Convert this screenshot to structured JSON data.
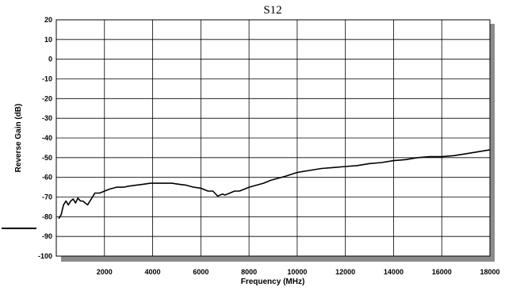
{
  "chart_data": {
    "type": "line",
    "title": "S12",
    "xlabel": "Frequency (MHz)",
    "ylabel": "Reverse Gain (dB)",
    "xlim": [
      0,
      18000
    ],
    "ylim": [
      -100,
      20
    ],
    "xticks": [
      2000,
      4000,
      6000,
      8000,
      10000,
      12000,
      14000,
      16000,
      18000
    ],
    "xtick_labels": [
      "2000",
      "4000",
      "6000",
      "8000",
      "10000",
      "12000",
      "14000",
      "16000",
      "18000"
    ],
    "yticks": [
      20,
      10,
      0,
      -10,
      -20,
      -30,
      -40,
      -50,
      -60,
      -70,
      -80,
      -90,
      -100
    ],
    "ytick_labels": [
      "20",
      "10",
      "0",
      "-10",
      "-20",
      "-30",
      "-40",
      "-50",
      "-60",
      "-70",
      "-80",
      "-90",
      "-100"
    ],
    "grid": true,
    "series": [
      {
        "color": "#000000",
        "x": [
          100,
          200,
          300,
          400,
          500,
          600,
          700,
          800,
          900,
          1000,
          1100,
          1200,
          1300,
          1400,
          1500,
          1600,
          1700,
          1800,
          2000,
          2200,
          2500,
          2800,
          3000,
          3300,
          3600,
          3900,
          4200,
          4500,
          4800,
          5100,
          5400,
          5700,
          6000,
          6300,
          6500,
          6700,
          6800,
          6900,
          7000,
          7200,
          7400,
          7600,
          7800,
          8000,
          8300,
          8600,
          8900,
          9200,
          9500,
          10000,
          10500,
          11000,
          11500,
          12000,
          12500,
          13000,
          13500,
          14000,
          14500,
          15000,
          15500,
          16000,
          16500,
          17000,
          17500,
          18000
        ],
        "y": [
          -81,
          -79,
          -74,
          -72,
          -74,
          -72,
          -71,
          -73,
          -70.5,
          -72,
          -72,
          -73,
          -74,
          -72,
          -70,
          -68,
          -68,
          -68,
          -67,
          -66,
          -65,
          -65,
          -64.5,
          -64,
          -63.5,
          -63,
          -63,
          -63,
          -63,
          -63.5,
          -64,
          -65,
          -65.5,
          -67,
          -67,
          -69.5,
          -69,
          -68.5,
          -69,
          -68,
          -67,
          -67,
          -66,
          -65,
          -64,
          -63,
          -61.5,
          -60.5,
          -59.5,
          -57.5,
          -56.5,
          -55.5,
          -55,
          -54.5,
          -54,
          -53,
          -52.5,
          -51.5,
          -51,
          -50,
          -49.5,
          -49.5,
          -49,
          -48,
          -47,
          -46
        ]
      }
    ]
  }
}
